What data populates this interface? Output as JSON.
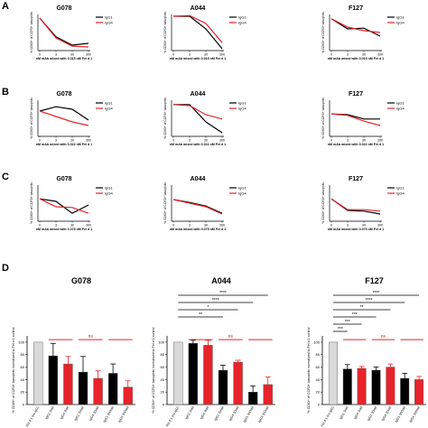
{
  "colors": {
    "igg1": "#000000",
    "igg4": "#e8232a",
    "ctrl": "#d9d9d9",
    "sig": "#e8232a"
  },
  "chart_data": {
    "type": "line",
    "legend_labels": [
      "IgG1",
      "IgG4"
    ],
    "x_ticks": [
      "0",
      "3",
      "30",
      "300"
    ],
    "y_axis_label": "% CD63+ of CCR3+ basophils",
    "panels": [
      {
        "letter": "A",
        "xlabel": "nM mAb mixed with 0.015 nM Fel d 1",
        "legend_placement": "top-right",
        "charts": [
          {
            "title": "G078",
            "series": [
              {
                "name": "IgG1",
                "values": [
                  90,
                  38,
                  15,
                  20
                ]
              },
              {
                "name": "IgG4",
                "values": [
                  90,
                  35,
                  12,
                  10
                ]
              }
            ]
          },
          {
            "title": "A044",
            "series": [
              {
                "name": "IgG1",
                "values": [
                  95,
                  95,
                  60,
                  5
                ]
              },
              {
                "name": "IgG4",
                "values": [
                  95,
                  97,
                  75,
                  22
                ]
              }
            ]
          },
          {
            "title": "F127",
            "series": [
              {
                "name": "IgG1",
                "values": [
                  88,
                  60,
                  62,
                  40
                ]
              },
              {
                "name": "IgG4",
                "values": [
                  88,
                  65,
                  55,
                  50
                ]
              }
            ]
          }
        ]
      },
      {
        "letter": "B",
        "xlabel": "nM mAb mixed with 0.022 nM Fel d 1",
        "legend_placement": "top-right",
        "charts": [
          {
            "title": "G078",
            "series": [
              {
                "name": "IgG1",
                "values": [
                  70,
                  82,
                  75,
                  45
                ]
              },
              {
                "name": "IgG4",
                "values": [
                  70,
                  55,
                  40,
                  30
                ]
              }
            ]
          },
          {
            "title": "A044",
            "series": [
              {
                "name": "IgG1",
                "values": [
                  88,
                  88,
                  40,
                  10
                ]
              },
              {
                "name": "IgG4",
                "values": [
                  88,
                  85,
                  60,
                  48
                ]
              }
            ]
          },
          {
            "title": "F127",
            "series": [
              {
                "name": "IgG1",
                "values": [
                  62,
                  60,
                  48,
                  48
                ]
              },
              {
                "name": "IgG4",
                "values": [
                  62,
                  58,
                  42,
                  30
                ]
              }
            ]
          }
        ]
      },
      {
        "letter": "C",
        "xlabel": "nM mAb mixed with 0.079 nM Fel d 1",
        "legend_placement": "top-right",
        "charts": [
          {
            "title": "G078",
            "series": [
              {
                "name": "IgG1",
                "values": [
                  62,
                  55,
                  22,
                  45
                ]
              },
              {
                "name": "IgG4",
                "values": [
                  62,
                  40,
                  38,
                  22
                ]
              }
            ]
          },
          {
            "title": "A044",
            "series": [
              {
                "name": "IgG1",
                "values": [
                  60,
                  52,
                  42,
                  22
                ]
              },
              {
                "name": "IgG4",
                "values": [
                  60,
                  50,
                  40,
                  20
                ]
              }
            ]
          },
          {
            "title": "F127",
            "series": [
              {
                "name": "IgG1",
                "values": [
                  62,
                  30,
                  28,
                  20
                ]
              },
              {
                "name": "IgG4",
                "values": [
                  62,
                  32,
                  32,
                  28
                ]
              }
            ]
          }
        ]
      }
    ],
    "bar_panel": {
      "letter": "D",
      "ylabel": "% CD63+ of CCR3+ basophils normalized to Fel d 1 control",
      "y_ticks": [
        "0",
        "20",
        "40",
        "60",
        "80",
        "100"
      ],
      "ylim": [
        0,
        110
      ],
      "charts": [
        {
          "title": "G078",
          "bars": [
            {
              "label": "Fel d 1 (no IgG)",
              "value": 100,
              "err": 0,
              "kind": "ctrl"
            },
            {
              "label": "IgG1 3nM",
              "value": 78,
              "err": 20,
              "kind": "igg1"
            },
            {
              "label": "IgG4 3nM",
              "value": 65,
              "err": 12,
              "kind": "igg4"
            },
            {
              "label": "IgG1 30nM",
              "value": 52,
              "err": 25,
              "kind": "igg1"
            },
            {
              "label": "IgG4 30nM",
              "value": 42,
              "err": 12,
              "kind": "igg4"
            },
            {
              "label": "IgG1 300nM",
              "value": 50,
              "err": 15,
              "kind": "igg1"
            },
            {
              "label": "IgG4 300nM",
              "value": 28,
              "err": 10,
              "kind": "igg4"
            }
          ],
          "sig": [
            {
              "from": 1,
              "to": 2,
              "label": ""
            },
            {
              "from": 3,
              "to": 4,
              "label": "ns"
            },
            {
              "from": 5,
              "to": 6,
              "label": ""
            }
          ]
        },
        {
          "title": "A044",
          "bars": [
            {
              "label": "Fel d 1 (no IgG)",
              "value": 100,
              "err": 0,
              "kind": "ctrl"
            },
            {
              "label": "IgG1 3nM",
              "value": 98,
              "err": 5,
              "kind": "igg1"
            },
            {
              "label": "IgG4 3nM",
              "value": 95,
              "err": 8,
              "kind": "igg4"
            },
            {
              "label": "IgG1 30nM",
              "value": 55,
              "err": 8,
              "kind": "igg1"
            },
            {
              "label": "IgG4 30nM",
              "value": 68,
              "err": 3,
              "kind": "igg4"
            },
            {
              "label": "IgG1 300nM",
              "value": 20,
              "err": 10,
              "kind": "igg1"
            },
            {
              "label": "IgG4 300nM",
              "value": 32,
              "err": 12,
              "kind": "igg4"
            }
          ],
          "sig": [
            {
              "from": 1,
              "to": 2,
              "label": ""
            },
            {
              "from": 3,
              "to": 4,
              "label": "ns"
            },
            {
              "from": 5,
              "to": 6,
              "label": ""
            }
          ],
          "brackets": [
            {
              "from": 0,
              "to": 6,
              "label": "****"
            },
            {
              "from": 0,
              "to": 5,
              "label": "****"
            },
            {
              "from": 0,
              "to": 4,
              "label": "*"
            },
            {
              "from": 0,
              "to": 3,
              "label": "**"
            }
          ]
        },
        {
          "title": "F127",
          "bars": [
            {
              "label": "Fel d 1 (no IgG)",
              "value": 100,
              "err": 0,
              "kind": "ctrl"
            },
            {
              "label": "IgG1 3nM",
              "value": 57,
              "err": 7,
              "kind": "igg1"
            },
            {
              "label": "IgG4 3nM",
              "value": 58,
              "err": 3,
              "kind": "igg4"
            },
            {
              "label": "IgG1 30nM",
              "value": 55,
              "err": 5,
              "kind": "igg1"
            },
            {
              "label": "IgG4 30nM",
              "value": 60,
              "err": 5,
              "kind": "igg4"
            },
            {
              "label": "IgG1 300nM",
              "value": 42,
              "err": 8,
              "kind": "igg1"
            },
            {
              "label": "IgG4 300nM",
              "value": 40,
              "err": 5,
              "kind": "igg4"
            }
          ],
          "sig": [
            {
              "from": 1,
              "to": 2,
              "label": ""
            },
            {
              "from": 3,
              "to": 4,
              "label": "ns"
            },
            {
              "from": 5,
              "to": 6,
              "label": ""
            }
          ],
          "brackets": [
            {
              "from": 0,
              "to": 6,
              "label": "****"
            },
            {
              "from": 0,
              "to": 5,
              "label": "****"
            },
            {
              "from": 0,
              "to": 4,
              "label": "**"
            },
            {
              "from": 0,
              "to": 3,
              "label": "***"
            },
            {
              "from": 0,
              "to": 2,
              "label": "***"
            },
            {
              "from": 0,
              "to": 1,
              "label": "***"
            }
          ]
        }
      ]
    }
  }
}
